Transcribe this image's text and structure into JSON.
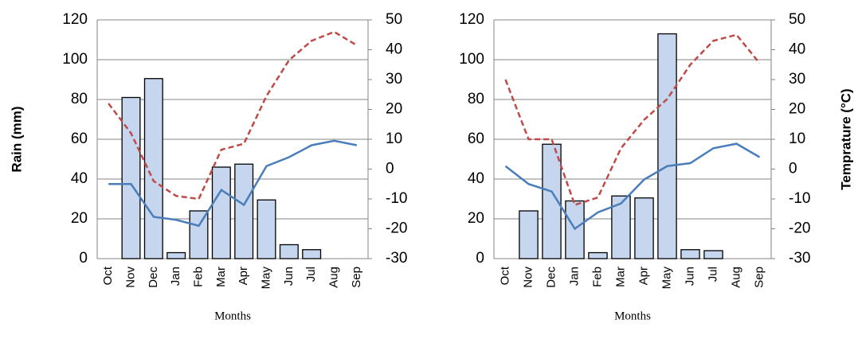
{
  "chart_data": [
    {
      "type": "bar",
      "xlabel": "Months",
      "ylabel": "Rain (mm)",
      "categories": [
        "Oct",
        "Nov",
        "Dec",
        "Jan",
        "Feb",
        "Mar",
        "Apr",
        "May",
        "Jun",
        "Jul",
        "Aug",
        "Sep"
      ],
      "series": [
        {
          "type": "bar",
          "color": "#c5d6ee",
          "values": [
            0,
            81,
            90.5,
            3,
            24,
            46,
            47.5,
            29.5,
            7,
            4.5,
            0,
            0
          ]
        },
        {
          "type": "line",
          "axis": "y2",
          "color": "#4a7ebb",
          "values": [
            -5,
            -5,
            -16,
            -17,
            -19,
            -7,
            -12,
            1,
            4,
            8,
            9.5,
            8
          ]
        },
        {
          "type": "line",
          "axis": "y2",
          "color": "#be4b48",
          "dashed": true,
          "values": [
            22,
            12,
            -4,
            -9,
            -10,
            6.5,
            8.5,
            24.5,
            36.5,
            43,
            46,
            41.5
          ]
        }
      ],
      "ylim": [
        0,
        120
      ],
      "yticks": [
        0,
        20,
        40,
        60,
        80,
        100,
        120
      ],
      "y2lim": [
        -30,
        50
      ],
      "y2ticks": [
        -30,
        -20,
        -10,
        0,
        10,
        20,
        30,
        40,
        50
      ],
      "grid": true
    },
    {
      "type": "bar",
      "xlabel": "Months",
      "y2label": "Temprature (°C)",
      "categories": [
        "Oct",
        "Nov",
        "Dec",
        "Jan",
        "Feb",
        "Mar",
        "Apr",
        "May",
        "Jun",
        "Jul",
        "Aug",
        "Sep"
      ],
      "series": [
        {
          "type": "bar",
          "color": "#c5d6ee",
          "values": [
            0,
            24,
            57.5,
            29,
            3,
            31.5,
            30.5,
            113,
            4.5,
            4,
            0,
            0
          ]
        },
        {
          "type": "line",
          "axis": "y2",
          "color": "#4a7ebb",
          "values": [
            1,
            -5,
            -7.5,
            -20,
            -14.5,
            -11.5,
            -3.5,
            1,
            2,
            7,
            8.5,
            4
          ]
        },
        {
          "type": "line",
          "axis": "y2",
          "color": "#be4b48",
          "dashed": true,
          "values": [
            30,
            10,
            10,
            -12,
            -9.5,
            7,
            16.5,
            23.5,
            35,
            43,
            45,
            35.5
          ]
        }
      ],
      "ylim": [
        0,
        120
      ],
      "yticks": [
        0,
        20,
        40,
        60,
        80,
        100,
        120
      ],
      "y2lim": [
        -30,
        50
      ],
      "y2ticks": [
        -30,
        -20,
        -10,
        0,
        10,
        20,
        30,
        40,
        50
      ],
      "grid": true
    }
  ]
}
